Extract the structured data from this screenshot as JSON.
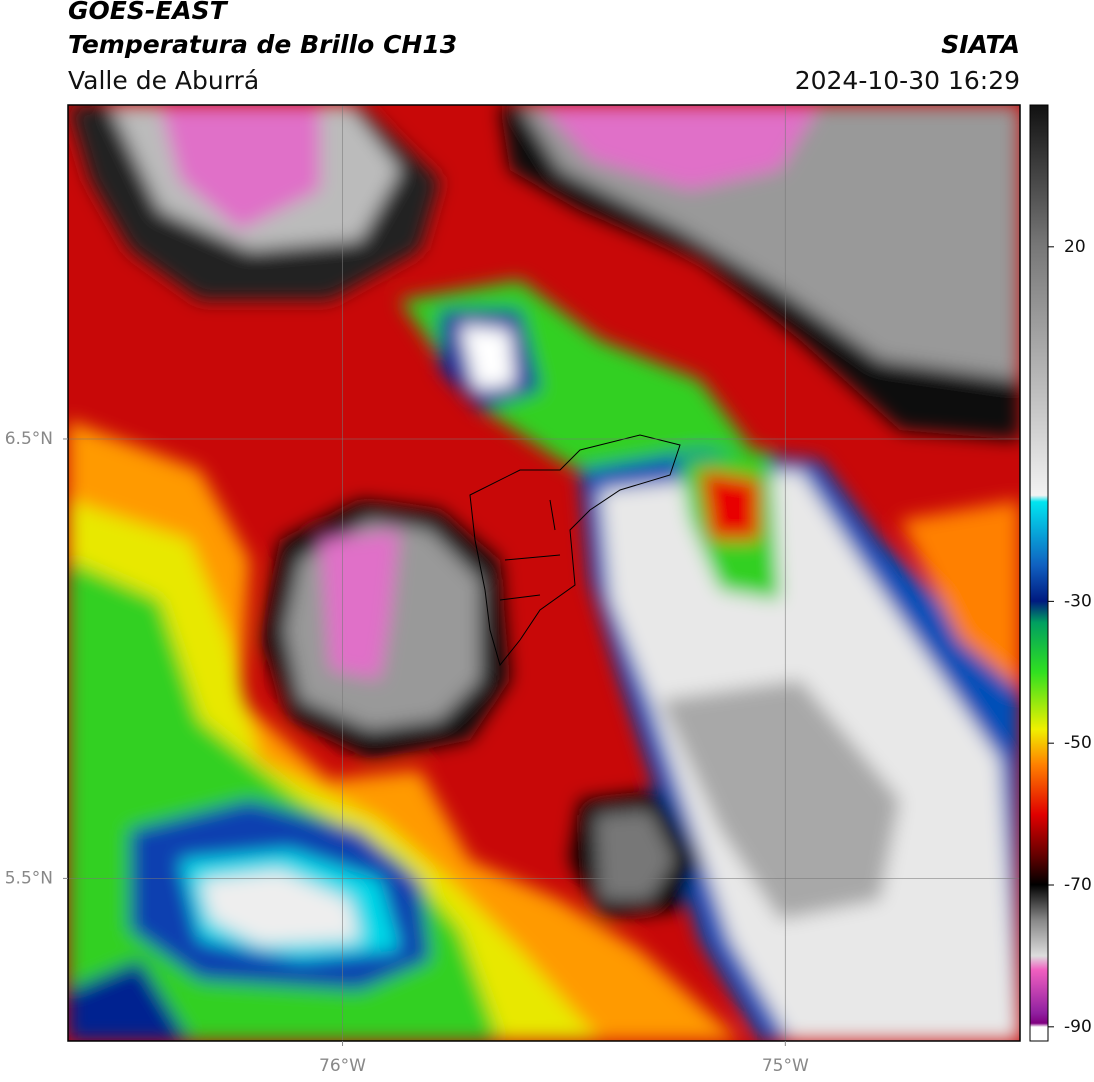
{
  "header": {
    "satellite": "GOES-EAST",
    "product": "Temperatura de Brillo CH13",
    "region": "Valle de Aburrá",
    "agency": "SIATA",
    "datetime": "2024-10-30 16:29"
  },
  "map": {
    "lonlim": [
      -76.62,
      -74.47
    ],
    "latlim": [
      5.13,
      7.26
    ],
    "lon_ticks": [
      {
        "value": -76,
        "label": "76°W"
      },
      {
        "value": -75,
        "label": "75°W"
      }
    ],
    "lat_ticks": [
      {
        "value": 6.5,
        "label": "6.5°N"
      },
      {
        "value": 5.5,
        "label": "5.5°N"
      }
    ],
    "grid": true
  },
  "colorbar": {
    "lim": [
      -92,
      40
    ],
    "ticks": [
      20,
      -30,
      -50,
      -70,
      -90
    ]
  }
}
